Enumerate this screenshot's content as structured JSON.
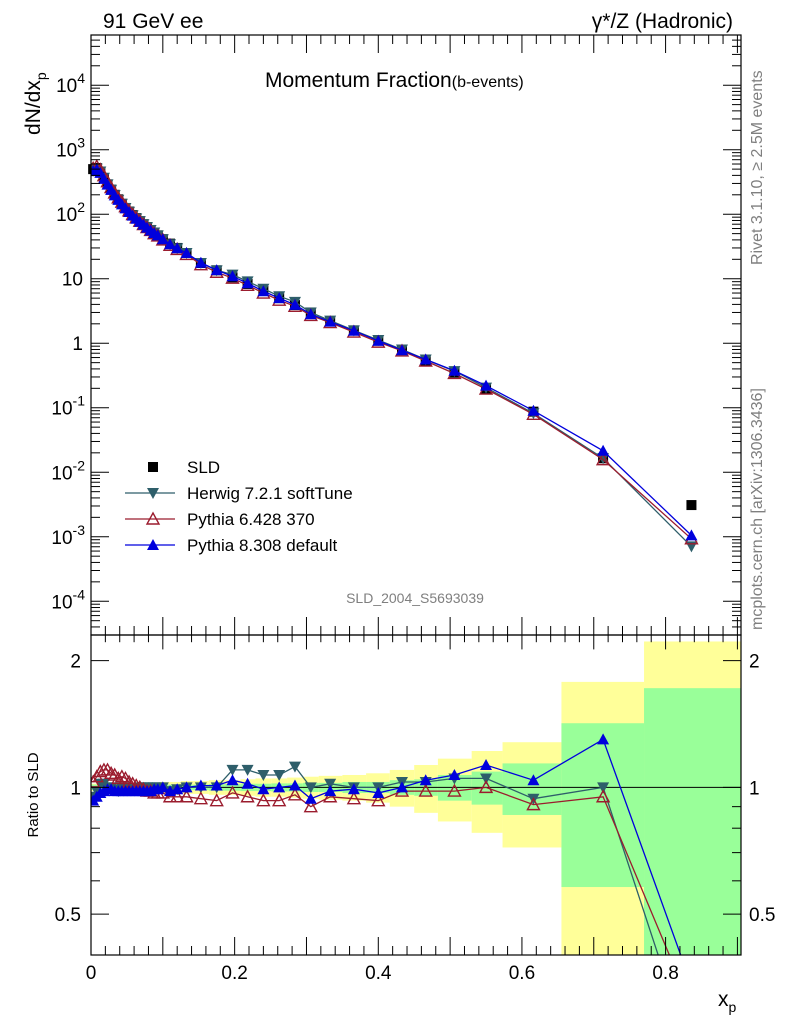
{
  "header": {
    "left": "91 GeV ee",
    "right": "γ*/Z (Hadronic)"
  },
  "side": {
    "rivet": "Rivet 3.1.10, ≥ 2.5M events",
    "mcplots": "mcplots.cern.ch [arXiv:1306.3436]"
  },
  "chart_data": {
    "type": "line",
    "title": "Momentum Fraction",
    "title_suffix": "(b-events)",
    "watermark": "SLD_2004_S5693039",
    "xlabel": "x",
    "xlabel_sub": "p",
    "ylabel": "dN/dx",
    "ylabel_sub": "p",
    "ratio_ylabel": "Ratio to SLD",
    "xlim": [
      0,
      0.905
    ],
    "ylim": [
      3e-05,
      60000
    ],
    "yscale": "log",
    "ratio_ylim": [
      0.4,
      2.3
    ],
    "ratio_yscale": "log",
    "x_ticks": [
      "0",
      "0.2",
      "0.4",
      "0.6",
      "0.8"
    ],
    "y_ticks": [
      "10^-4",
      "10^-3",
      "10^-2",
      "10^-1",
      "1",
      "10",
      "10^2",
      "10^3",
      "10^4"
    ],
    "ratio_ticks": [
      "0.5",
      "1",
      "2"
    ],
    "legend_position": "lower-left",
    "x": [
      0.003,
      0.008,
      0.013,
      0.018,
      0.023,
      0.028,
      0.033,
      0.038,
      0.043,
      0.048,
      0.053,
      0.058,
      0.063,
      0.068,
      0.073,
      0.078,
      0.083,
      0.088,
      0.093,
      0.1,
      0.11,
      0.12,
      0.133,
      0.153,
      0.175,
      0.197,
      0.218,
      0.24,
      0.262,
      0.284,
      0.306,
      0.333,
      0.366,
      0.4,
      0.433,
      0.466,
      0.506,
      0.55,
      0.616,
      0.713,
      0.836
    ],
    "bins": [
      [
        0.0,
        0.005
      ],
      [
        0.005,
        0.01
      ],
      [
        0.01,
        0.015
      ],
      [
        0.015,
        0.02
      ],
      [
        0.02,
        0.025
      ],
      [
        0.025,
        0.03
      ],
      [
        0.03,
        0.035
      ],
      [
        0.035,
        0.04
      ],
      [
        0.04,
        0.045
      ],
      [
        0.045,
        0.05
      ],
      [
        0.05,
        0.055
      ],
      [
        0.055,
        0.06
      ],
      [
        0.06,
        0.065
      ],
      [
        0.065,
        0.07
      ],
      [
        0.07,
        0.075
      ],
      [
        0.075,
        0.08
      ],
      [
        0.08,
        0.085
      ],
      [
        0.085,
        0.09
      ],
      [
        0.09,
        0.095
      ],
      [
        0.095,
        0.105
      ],
      [
        0.105,
        0.115
      ],
      [
        0.115,
        0.125
      ],
      [
        0.125,
        0.142
      ],
      [
        0.142,
        0.164
      ],
      [
        0.164,
        0.186
      ],
      [
        0.186,
        0.208
      ],
      [
        0.208,
        0.229
      ],
      [
        0.229,
        0.251
      ],
      [
        0.251,
        0.273
      ],
      [
        0.273,
        0.295
      ],
      [
        0.295,
        0.317
      ],
      [
        0.317,
        0.35
      ],
      [
        0.35,
        0.383
      ],
      [
        0.383,
        0.416
      ],
      [
        0.416,
        0.45
      ],
      [
        0.45,
        0.483
      ],
      [
        0.483,
        0.53
      ],
      [
        0.53,
        0.573
      ],
      [
        0.573,
        0.655
      ],
      [
        0.655,
        0.77
      ],
      [
        0.77,
        0.905
      ]
    ],
    "ratio_band_stat": [
      0.015,
      0.015,
      0.015,
      0.015,
      0.015,
      0.015,
      0.015,
      0.015,
      0.015,
      0.015,
      0.015,
      0.015,
      0.015,
      0.015,
      0.015,
      0.015,
      0.015,
      0.015,
      0.015,
      0.015,
      0.015,
      0.015,
      0.015,
      0.015,
      0.018,
      0.018,
      0.02,
      0.02,
      0.022,
      0.022,
      0.025,
      0.025,
      0.03,
      0.03,
      0.04,
      0.045,
      0.07,
      0.09,
      0.14,
      0.42,
      0.72
    ],
    "ratio_band_total": [
      0.02,
      0.02,
      0.02,
      0.02,
      0.02,
      0.02,
      0.02,
      0.02,
      0.02,
      0.02,
      0.02,
      0.025,
      0.025,
      0.025,
      0.025,
      0.025,
      0.025,
      0.025,
      0.025,
      0.03,
      0.03,
      0.03,
      0.035,
      0.035,
      0.04,
      0.04,
      0.045,
      0.05,
      0.05,
      0.055,
      0.06,
      0.065,
      0.07,
      0.08,
      0.1,
      0.13,
      0.17,
      0.22,
      0.28,
      0.78,
      1.22
    ],
    "series": [
      {
        "name": "SLD",
        "color": "#000000",
        "marker": "square",
        "values": [
          500,
          520,
          450,
          360,
          290,
          240,
          200,
          170,
          145,
          125,
          110,
          97,
          87,
          78,
          70,
          63,
          57,
          52,
          47,
          41,
          35,
          30,
          25,
          17.5,
          13.5,
          10.5,
          8.3,
          6.5,
          5.0,
          3.9,
          3.0,
          2.2,
          1.58,
          1.12,
          0.78,
          0.54,
          0.35,
          0.195,
          0.087,
          0.0165,
          0.0031
        ]
      },
      {
        "name": "Herwig 7.2.1 softTune",
        "color": "#2e5e6a",
        "marker": "triangle-down",
        "ratio": [
          0.95,
          0.98,
          1.02,
          1.02,
          1.0,
          1.0,
          0.99,
          0.98,
          1.0,
          1.0,
          0.99,
          0.99,
          0.99,
          1.0,
          1.0,
          1.0,
          1.0,
          1.0,
          1.0,
          1.0,
          0.98,
          0.99,
          1.0,
          1.0,
          1.0,
          1.1,
          1.1,
          1.07,
          1.07,
          1.12,
          1.0,
          1.02,
          1.0,
          1.0,
          1.03,
          1.03,
          1.05,
          1.05,
          0.94,
          1.0,
          0.23
        ],
        "values": [
          475,
          510,
          459,
          367,
          290,
          240,
          198,
          167,
          145,
          125,
          109,
          96,
          86,
          78,
          70,
          63,
          57,
          52,
          47,
          41,
          34.3,
          29.7,
          25,
          17.5,
          13.5,
          11.6,
          9.1,
          7.0,
          5.35,
          4.37,
          3.0,
          2.24,
          1.58,
          1.12,
          0.8,
          0.56,
          0.37,
          0.205,
          0.082,
          0.0165,
          0.00071
        ]
      },
      {
        "name": "Pythia 6.428 370",
        "color": "#9b1c2e",
        "marker": "triangle-open",
        "ratio": [
          1.03,
          1.06,
          1.09,
          1.1,
          1.1,
          1.08,
          1.07,
          1.05,
          1.06,
          1.05,
          1.03,
          1.02,
          1.01,
          1.0,
          0.99,
          0.98,
          0.98,
          0.97,
          0.97,
          0.97,
          0.95,
          0.95,
          0.95,
          0.94,
          0.93,
          0.97,
          0.95,
          0.93,
          0.93,
          0.96,
          0.9,
          0.95,
          0.94,
          0.93,
          0.98,
          0.98,
          0.98,
          1.0,
          0.91,
          0.95,
          0.3
        ],
        "values": [
          515,
          551,
          490,
          396,
          319,
          259,
          214,
          179,
          154,
          131,
          113,
          99,
          88,
          78,
          69,
          62,
          56,
          50,
          46,
          40,
          33,
          28.5,
          23.8,
          16.5,
          12.6,
          10.2,
          7.9,
          6.0,
          4.65,
          3.74,
          2.7,
          2.09,
          1.49,
          1.04,
          0.76,
          0.53,
          0.34,
          0.195,
          0.079,
          0.0157,
          0.00093
        ]
      },
      {
        "name": "Pythia 8.308 default",
        "color": "#0000dd",
        "marker": "triangle-up",
        "ratio": [
          0.93,
          0.95,
          0.97,
          0.98,
          0.99,
          0.99,
          0.98,
          0.98,
          0.98,
          0.98,
          0.98,
          0.98,
          0.98,
          0.98,
          0.98,
          0.98,
          0.98,
          0.99,
          0.99,
          1.0,
          0.98,
          0.99,
          1.0,
          1.01,
          1.01,
          1.04,
          1.02,
          0.99,
          1.0,
          1.01,
          0.94,
          0.98,
          0.99,
          0.97,
          1.0,
          1.04,
          1.07,
          1.13,
          1.04,
          1.3,
          0.34
        ],
        "values": [
          465,
          494,
          437,
          353,
          287,
          238,
          196,
          167,
          142,
          123,
          108,
          95,
          85,
          76,
          69,
          62,
          56,
          51,
          47,
          41,
          34.3,
          29.7,
          25,
          17.7,
          13.6,
          10.9,
          8.5,
          6.4,
          5.0,
          3.94,
          2.82,
          2.16,
          1.56,
          1.09,
          0.78,
          0.56,
          0.375,
          0.22,
          0.09,
          0.0215,
          0.00105
        ]
      }
    ]
  }
}
